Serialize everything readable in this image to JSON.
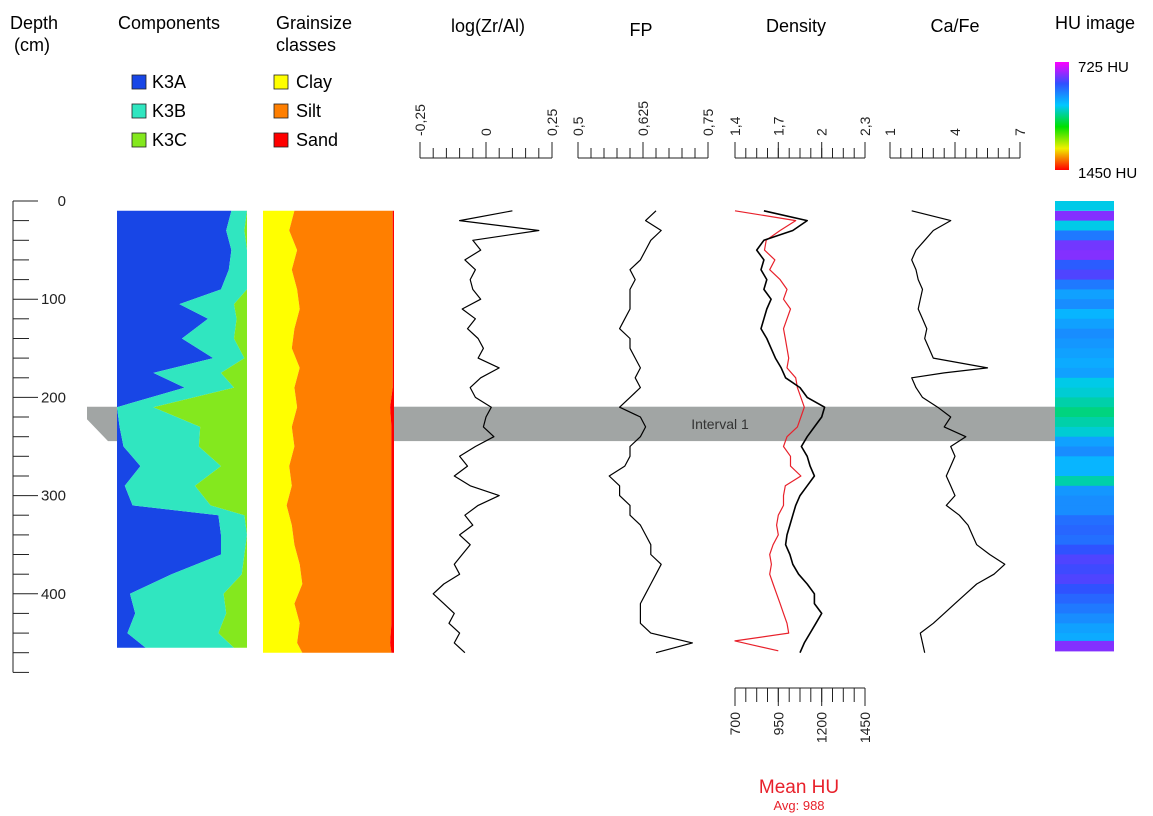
{
  "headers": {
    "depth": [
      "Depth",
      "(cm)"
    ],
    "components": "Components",
    "grainsize": [
      "Grainsize",
      "classes"
    ],
    "zr_al": "log(Zr/Al)",
    "fp": "FP",
    "density": "Density",
    "ca_fe": "Ca/Fe",
    "hu_image": "HU image"
  },
  "legends": {
    "components": [
      {
        "label": "K3A",
        "color": "#1846e6"
      },
      {
        "label": "K3B",
        "color": "#30e6c0"
      },
      {
        "label": "K3C",
        "color": "#84e81e"
      }
    ],
    "grainsize": [
      {
        "label": "Clay",
        "color": "#ffff00"
      },
      {
        "label": "Silt",
        "color": "#ff7f00"
      },
      {
        "label": "Sand",
        "color": "#ff0000"
      }
    ]
  },
  "hu_colorbar": {
    "top_label": "725 HU",
    "bottom_label": "1450 HU"
  },
  "interval": {
    "label": "Interval 1",
    "depth_top": 210,
    "depth_bottom": 244,
    "color": "#a1a5a4"
  },
  "mean_hu": {
    "label": "Mean HU",
    "avg_label": "Avg: 988",
    "color": "#e8212b"
  },
  "colors": {
    "curve": "#000000",
    "mean_hu": "#e8212b"
  },
  "chart_data": [
    {
      "type": "line",
      "name": "depth-axis",
      "ylabel": "Depth (cm)",
      "ylim": [
        0,
        480
      ],
      "yticks": [
        "0",
        "100",
        "200",
        "300",
        "400"
      ]
    },
    {
      "type": "area",
      "title": "Components",
      "depth": [
        10,
        30,
        50,
        70,
        90,
        105,
        120,
        140,
        160,
        175,
        190,
        210,
        230,
        250,
        270,
        290,
        310,
        320,
        340,
        360,
        380,
        400,
        420,
        440,
        455
      ],
      "series": [
        {
          "name": "K3A",
          "values": [
            88,
            84,
            88,
            86,
            80,
            48,
            70,
            50,
            74,
            28,
            52,
            0,
            2,
            5,
            18,
            6,
            12,
            78,
            80,
            80,
            42,
            10,
            14,
            8,
            22
          ]
        },
        {
          "name": "K3B",
          "values": [
            12,
            14,
            12,
            14,
            20,
            42,
            22,
            40,
            24,
            52,
            38,
            28,
            62,
            58,
            62,
            54,
            60,
            20,
            20,
            18,
            54,
            72,
            70,
            70,
            68
          ]
        },
        {
          "name": "K3C",
          "values": [
            0,
            2,
            0,
            0,
            0,
            10,
            8,
            10,
            2,
            20,
            10,
            72,
            36,
            37,
            20,
            40,
            28,
            2,
            0,
            2,
            4,
            18,
            16,
            22,
            10
          ]
        }
      ]
    },
    {
      "type": "area",
      "title": "Grainsize classes",
      "depth": [
        10,
        30,
        50,
        70,
        90,
        110,
        130,
        150,
        170,
        190,
        210,
        230,
        250,
        270,
        290,
        310,
        330,
        350,
        370,
        390,
        410,
        430,
        450,
        460
      ],
      "series": [
        {
          "name": "Clay",
          "values": [
            24,
            20,
            26,
            22,
            26,
            28,
            24,
            22,
            28,
            24,
            26,
            22,
            24,
            20,
            22,
            18,
            22,
            24,
            28,
            30,
            24,
            28,
            26,
            30
          ]
        },
        {
          "name": "Silt",
          "values": [
            75,
            79,
            73,
            77,
            73,
            71,
            75,
            77,
            71,
            75,
            71,
            76,
            74,
            78,
            76,
            80,
            76,
            74,
            70,
            68,
            74,
            70,
            71,
            68
          ]
        },
        {
          "name": "Sand",
          "values": [
            1,
            1,
            1,
            1,
            1,
            1,
            1,
            1,
            1,
            1,
            3,
            2,
            2,
            2,
            2,
            2,
            2,
            2,
            2,
            2,
            2,
            2,
            3,
            2
          ]
        }
      ]
    },
    {
      "type": "line",
      "title": "log(Zr/Al)",
      "xlim": [
        -0.25,
        0.25
      ],
      "xticks": [
        "-0,25",
        "0",
        "0,25"
      ],
      "depth": [
        10,
        20,
        30,
        40,
        50,
        60,
        70,
        80,
        90,
        100,
        110,
        120,
        130,
        140,
        150,
        160,
        170,
        180,
        190,
        200,
        210,
        220,
        230,
        240,
        250,
        260,
        270,
        280,
        290,
        300,
        310,
        320,
        330,
        340,
        350,
        360,
        370,
        380,
        390,
        400,
        410,
        420,
        430,
        440,
        450,
        460
      ],
      "values": [
        0.1,
        -0.1,
        0.2,
        -0.05,
        -0.02,
        -0.08,
        -0.04,
        -0.06,
        -0.05,
        -0.02,
        -0.09,
        -0.04,
        -0.07,
        -0.03,
        -0.01,
        -0.03,
        0.05,
        -0.02,
        -0.06,
        -0.04,
        0.02,
        0.0,
        -0.01,
        0.03,
        -0.04,
        -0.1,
        -0.07,
        -0.12,
        -0.06,
        0.05,
        -0.03,
        -0.08,
        -0.05,
        -0.1,
        -0.06,
        -0.09,
        -0.12,
        -0.1,
        -0.16,
        -0.2,
        -0.16,
        -0.12,
        -0.14,
        -0.1,
        -0.12,
        -0.08
      ]
    },
    {
      "type": "line",
      "title": "FP",
      "xlim": [
        0.5,
        0.75
      ],
      "xticks": [
        "0,5",
        "0,625",
        "0,75"
      ],
      "depth": [
        10,
        20,
        30,
        40,
        50,
        60,
        70,
        80,
        90,
        100,
        110,
        120,
        130,
        140,
        150,
        160,
        170,
        180,
        190,
        200,
        210,
        220,
        230,
        240,
        250,
        260,
        270,
        280,
        290,
        300,
        310,
        320,
        330,
        340,
        350,
        360,
        370,
        380,
        390,
        400,
        410,
        420,
        430,
        440,
        450,
        460
      ],
      "values": [
        0.65,
        0.63,
        0.66,
        0.64,
        0.63,
        0.62,
        0.6,
        0.61,
        0.6,
        0.6,
        0.6,
        0.59,
        0.58,
        0.6,
        0.6,
        0.61,
        0.62,
        0.61,
        0.62,
        0.6,
        0.58,
        0.62,
        0.63,
        0.62,
        0.6,
        0.6,
        0.59,
        0.56,
        0.58,
        0.58,
        0.6,
        0.6,
        0.62,
        0.63,
        0.64,
        0.64,
        0.66,
        0.65,
        0.64,
        0.63,
        0.62,
        0.62,
        0.62,
        0.64,
        0.72,
        0.65
      ]
    },
    {
      "type": "line",
      "title": "Density",
      "xlim": [
        1.4,
        2.3
      ],
      "xticks": [
        "1,4",
        "1,7",
        "2",
        "2,3"
      ],
      "depth": [
        10,
        20,
        30,
        40,
        50,
        60,
        70,
        80,
        90,
        100,
        110,
        120,
        130,
        140,
        150,
        160,
        170,
        180,
        190,
        200,
        210,
        220,
        230,
        240,
        250,
        260,
        270,
        280,
        290,
        300,
        310,
        320,
        330,
        340,
        350,
        360,
        370,
        380,
        390,
        400,
        410,
        420,
        430,
        440,
        450,
        460
      ],
      "values": [
        1.6,
        1.9,
        1.8,
        1.6,
        1.55,
        1.6,
        1.58,
        1.62,
        1.6,
        1.65,
        1.62,
        1.6,
        1.58,
        1.62,
        1.65,
        1.68,
        1.72,
        1.75,
        1.85,
        1.9,
        2.02,
        2.0,
        1.95,
        1.9,
        1.86,
        1.9,
        1.92,
        1.95,
        1.9,
        1.85,
        1.82,
        1.8,
        1.78,
        1.76,
        1.75,
        1.78,
        1.8,
        1.84,
        1.9,
        1.95,
        1.95,
        2.0,
        1.96,
        1.92,
        1.88,
        1.85
      ]
    },
    {
      "type": "line",
      "title": "Mean HU",
      "xlim": [
        700,
        1450
      ],
      "xticks": [
        "700",
        "950",
        "1200",
        "1450"
      ],
      "depth": [
        10,
        20,
        30,
        40,
        50,
        60,
        70,
        80,
        90,
        100,
        110,
        120,
        130,
        140,
        150,
        160,
        170,
        180,
        190,
        200,
        210,
        220,
        230,
        240,
        250,
        260,
        270,
        280,
        290,
        300,
        310,
        320,
        330,
        340,
        350,
        360,
        370,
        380,
        390,
        400,
        410,
        420,
        430,
        440,
        448,
        452,
        458
      ],
      "values": [
        700,
        1050,
        960,
        880,
        870,
        930,
        900,
        960,
        1000,
        980,
        1020,
        1000,
        980,
        990,
        1000,
        1010,
        1000,
        1050,
        1060,
        1080,
        1100,
        1080,
        1060,
        1000,
        980,
        1020,
        1020,
        1080,
        990,
        980,
        980,
        950,
        940,
        950,
        920,
        900,
        910,
        900,
        920,
        940,
        960,
        980,
        1000,
        1010,
        700,
        800,
        950
      ]
    },
    {
      "type": "line",
      "title": "Ca/Fe",
      "xlim": [
        1,
        7
      ],
      "xticks": [
        "1",
        "4",
        "7"
      ],
      "depth": [
        10,
        20,
        30,
        40,
        50,
        60,
        70,
        80,
        90,
        100,
        110,
        120,
        130,
        140,
        150,
        160,
        170,
        175,
        180,
        190,
        200,
        210,
        220,
        230,
        240,
        250,
        260,
        270,
        280,
        290,
        300,
        310,
        320,
        330,
        340,
        350,
        360,
        370,
        380,
        390,
        400,
        410,
        420,
        430,
        440,
        450,
        460
      ],
      "values": [
        2.0,
        3.8,
        3.0,
        2.6,
        2.2,
        2.0,
        2.2,
        2.3,
        2.5,
        2.4,
        2.3,
        2.5,
        2.7,
        2.6,
        2.8,
        3.0,
        5.5,
        3.5,
        2.0,
        2.2,
        2.5,
        3.2,
        3.8,
        3.5,
        4.5,
        3.8,
        4.0,
        3.8,
        3.6,
        3.8,
        4.0,
        3.6,
        4.2,
        4.6,
        4.8,
        5.0,
        5.6,
        6.3,
        5.8,
        5.0,
        4.5,
        4.0,
        3.5,
        3.0,
        2.4,
        2.5,
        2.6
      ]
    }
  ]
}
